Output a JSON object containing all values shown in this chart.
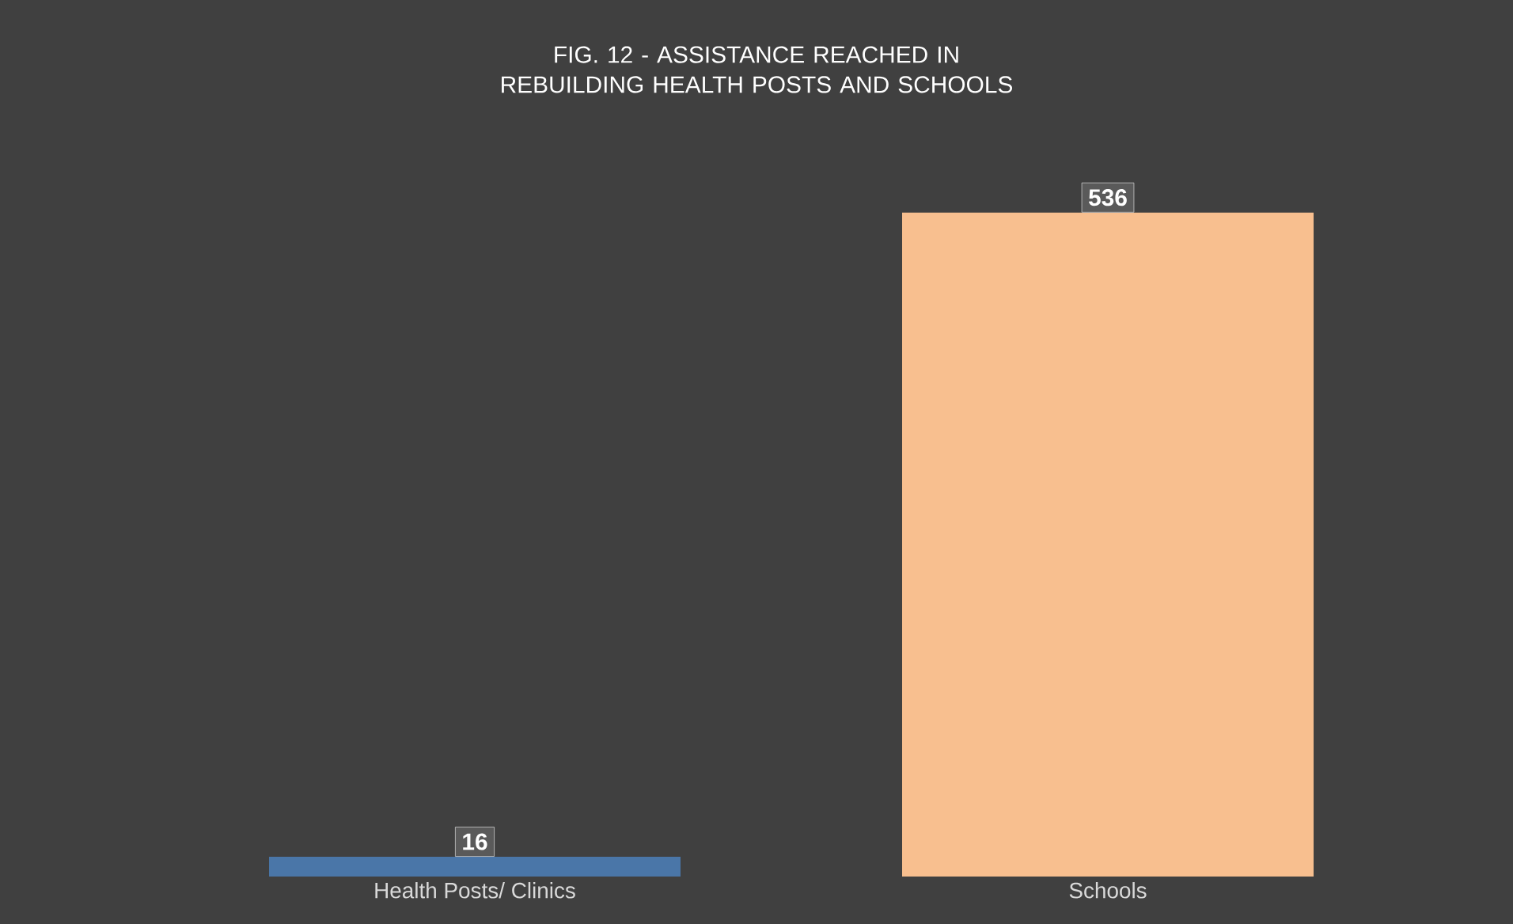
{
  "chart_data": {
    "type": "bar",
    "title": "FIG. 12 - ASSISTANCE REACHED IN REBUILDING HEALTH POSTS AND SCHOOLS",
    "categories": [
      "Health Posts/ Clinics",
      "Schools"
    ],
    "values": [
      16,
      536
    ],
    "colors": [
      "#4a76a8",
      "#f8bf8f"
    ],
    "data_labels": true
  }
}
